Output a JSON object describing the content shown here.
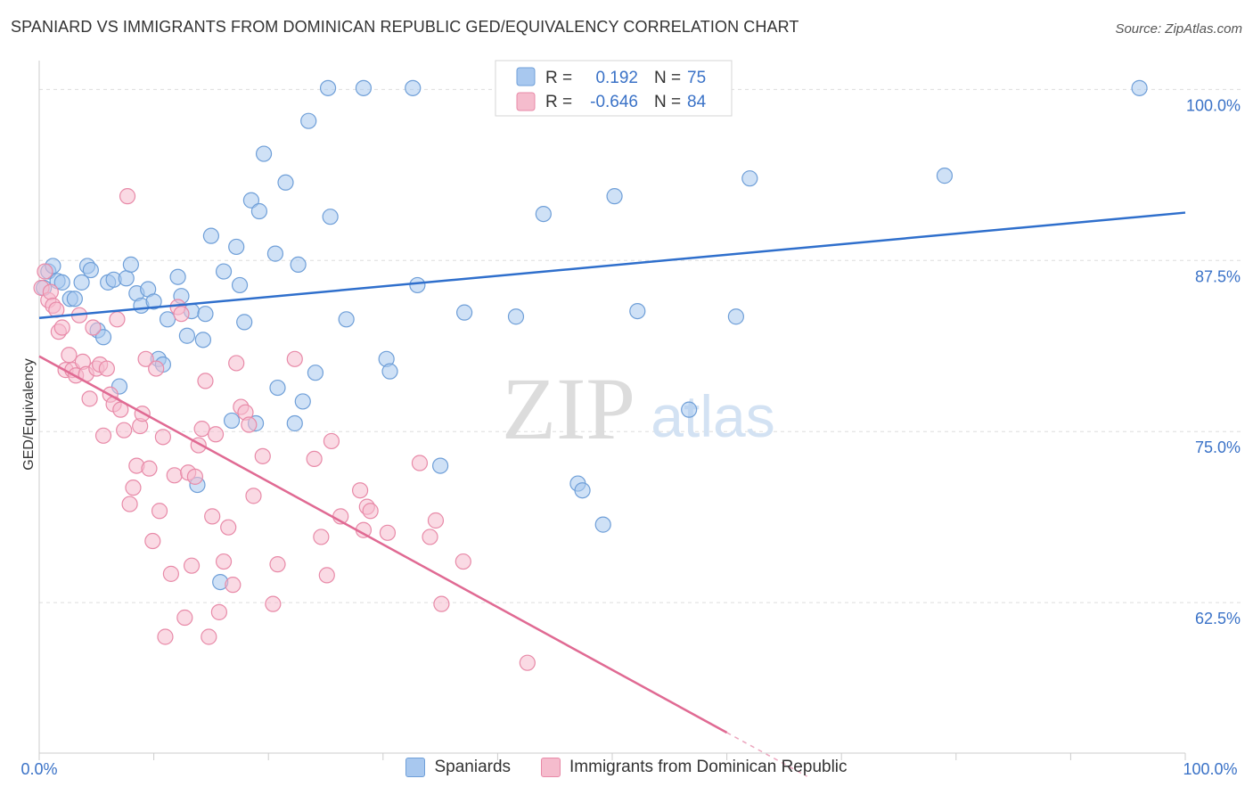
{
  "header": {
    "title": "SPANIARD VS IMMIGRANTS FROM DOMINICAN REPUBLIC GED/EQUIVALENCY CORRELATION CHART",
    "source": "Source: ZipAtlas.com"
  },
  "watermark": {
    "zip": "ZIP",
    "atlas": "atlas"
  },
  "colors": {
    "blue_fill": "#a8c8ef",
    "blue_stroke": "#6f9fd8",
    "blue_line": "#2f6fcc",
    "pink_fill": "#f5bccd",
    "pink_stroke": "#e88aa8",
    "pink_line": "#e06a93",
    "tick_label": "#3a72c7",
    "grid": "#dddddd"
  },
  "legend_top": [
    {
      "r_label": "R =",
      "r_value": "0.192",
      "n_label": "N =",
      "n_value": "75"
    },
    {
      "r_label": "R =",
      "r_value": "-0.646",
      "n_label": "N =",
      "n_value": "84"
    }
  ],
  "legend_bottom": [
    {
      "label": "Spaniards"
    },
    {
      "label": "Immigrants from Dominican Republic"
    }
  ],
  "chart_data": {
    "type": "scatter",
    "title": "SPANIARD VS IMMIGRANTS FROM DOMINICAN REPUBLIC GED/EQUIVALENCY CORRELATION CHART",
    "xlabel": "",
    "ylabel": "GED/Equivalency",
    "xlim": [
      0,
      100
    ],
    "ylim": [
      51.5,
      102.5
    ],
    "x_tick_labels": [
      "0.0%",
      "100.0%"
    ],
    "y_ticks": [
      62.5,
      75.0,
      87.5,
      100.0
    ],
    "y_tick_labels": [
      "62.5%",
      "75.0%",
      "87.5%",
      "100.0%"
    ],
    "grid": "horizontal dashed",
    "legend_placement": "top-center",
    "series": [
      {
        "name": "Spaniards",
        "r": 0.192,
        "n": 75,
        "trend": {
          "x0": 0,
          "y0": 83.3,
          "x1": 100,
          "y1": 91.0
        },
        "points": [
          [
            0.4,
            85.5
          ],
          [
            0.8,
            86.7
          ],
          [
            1.2,
            87.1
          ],
          [
            1.6,
            86.0
          ],
          [
            2.0,
            85.9
          ],
          [
            2.7,
            84.7
          ],
          [
            3.1,
            84.7
          ],
          [
            3.7,
            85.9
          ],
          [
            4.2,
            87.1
          ],
          [
            4.5,
            86.8
          ],
          [
            5.1,
            82.4
          ],
          [
            5.6,
            81.9
          ],
          [
            6.0,
            85.9
          ],
          [
            6.5,
            86.1
          ],
          [
            7.0,
            78.3
          ],
          [
            7.6,
            86.2
          ],
          [
            8.0,
            87.2
          ],
          [
            8.5,
            85.1
          ],
          [
            8.9,
            84.2
          ],
          [
            9.5,
            85.4
          ],
          [
            10.0,
            84.5
          ],
          [
            10.4,
            80.3
          ],
          [
            10.8,
            79.9
          ],
          [
            11.2,
            83.2
          ],
          [
            12.1,
            86.3
          ],
          [
            12.4,
            84.9
          ],
          [
            12.9,
            82.0
          ],
          [
            13.3,
            83.8
          ],
          [
            13.8,
            71.1
          ],
          [
            14.3,
            81.7
          ],
          [
            14.5,
            83.6
          ],
          [
            15.0,
            89.3
          ],
          [
            15.8,
            64.0
          ],
          [
            16.1,
            86.7
          ],
          [
            16.8,
            75.8
          ],
          [
            17.2,
            88.5
          ],
          [
            17.5,
            85.7
          ],
          [
            17.9,
            83.0
          ],
          [
            18.5,
            91.9
          ],
          [
            18.9,
            75.6
          ],
          [
            19.2,
            91.1
          ],
          [
            19.6,
            95.3
          ],
          [
            20.6,
            88.0
          ],
          [
            20.8,
            78.2
          ],
          [
            21.5,
            93.2
          ],
          [
            22.3,
            75.6
          ],
          [
            22.6,
            87.2
          ],
          [
            23.0,
            77.2
          ],
          [
            23.5,
            97.7
          ],
          [
            24.1,
            79.3
          ],
          [
            25.2,
            100.1
          ],
          [
            25.4,
            90.7
          ],
          [
            26.8,
            83.2
          ],
          [
            28.3,
            100.1
          ],
          [
            30.3,
            80.3
          ],
          [
            30.6,
            79.4
          ],
          [
            32.6,
            100.1
          ],
          [
            33.0,
            85.7
          ],
          [
            35.0,
            72.5
          ],
          [
            37.1,
            83.7
          ],
          [
            41.2,
            100.1
          ],
          [
            41.6,
            83.4
          ],
          [
            44.0,
            90.9
          ],
          [
            47.0,
            71.2
          ],
          [
            47.4,
            70.7
          ],
          [
            49.2,
            68.2
          ],
          [
            50.2,
            92.2
          ],
          [
            52.2,
            83.8
          ],
          [
            56.7,
            76.6
          ],
          [
            60.8,
            83.4
          ],
          [
            62.0,
            93.5
          ],
          [
            79.0,
            93.7
          ],
          [
            96.0,
            100.1
          ]
        ]
      },
      {
        "name": "Immigrants from Dominican Republic",
        "r": -0.646,
        "n": 84,
        "trend": {
          "x0": 0,
          "y0": 80.5,
          "x1": 60,
          "y1": 53.0,
          "dash_to_x": 67,
          "dash_to_y": 49.8
        },
        "points": [
          [
            0.2,
            85.5
          ],
          [
            0.5,
            86.7
          ],
          [
            0.8,
            84.6
          ],
          [
            1.0,
            85.2
          ],
          [
            1.2,
            84.2
          ],
          [
            1.5,
            83.9
          ],
          [
            1.7,
            82.3
          ],
          [
            2.0,
            82.6
          ],
          [
            2.3,
            79.5
          ],
          [
            2.6,
            80.6
          ],
          [
            2.9,
            79.5
          ],
          [
            3.2,
            79.1
          ],
          [
            3.5,
            83.5
          ],
          [
            3.8,
            80.1
          ],
          [
            4.1,
            79.2
          ],
          [
            4.4,
            77.4
          ],
          [
            4.7,
            82.6
          ],
          [
            5.0,
            79.6
          ],
          [
            5.3,
            79.9
          ],
          [
            5.6,
            74.7
          ],
          [
            5.9,
            79.6
          ],
          [
            6.2,
            77.7
          ],
          [
            6.5,
            77.0
          ],
          [
            6.8,
            83.2
          ],
          [
            7.1,
            76.6
          ],
          [
            7.4,
            75.1
          ],
          [
            7.7,
            92.2
          ],
          [
            7.9,
            69.7
          ],
          [
            8.2,
            70.9
          ],
          [
            8.5,
            72.5
          ],
          [
            8.8,
            75.4
          ],
          [
            9.0,
            76.3
          ],
          [
            9.3,
            80.3
          ],
          [
            9.6,
            72.3
          ],
          [
            9.9,
            67.0
          ],
          [
            10.2,
            79.6
          ],
          [
            10.5,
            69.2
          ],
          [
            10.8,
            74.6
          ],
          [
            11.0,
            60.0
          ],
          [
            11.5,
            64.6
          ],
          [
            11.8,
            71.8
          ],
          [
            12.1,
            84.1
          ],
          [
            12.4,
            83.6
          ],
          [
            12.7,
            61.4
          ],
          [
            13.0,
            72.0
          ],
          [
            13.3,
            65.2
          ],
          [
            13.6,
            71.7
          ],
          [
            13.9,
            74.0
          ],
          [
            14.2,
            75.2
          ],
          [
            14.5,
            78.7
          ],
          [
            14.8,
            60.0
          ],
          [
            15.1,
            68.8
          ],
          [
            15.4,
            74.8
          ],
          [
            15.7,
            61.8
          ],
          [
            16.1,
            65.5
          ],
          [
            16.5,
            68.0
          ],
          [
            16.9,
            63.8
          ],
          [
            17.2,
            80.0
          ],
          [
            17.6,
            76.8
          ],
          [
            18.0,
            76.4
          ],
          [
            18.3,
            75.5
          ],
          [
            18.7,
            70.3
          ],
          [
            19.5,
            73.2
          ],
          [
            20.4,
            62.4
          ],
          [
            20.8,
            65.3
          ],
          [
            22.3,
            80.3
          ],
          [
            24.0,
            73.0
          ],
          [
            24.6,
            67.3
          ],
          [
            25.1,
            64.5
          ],
          [
            25.5,
            74.3
          ],
          [
            26.3,
            68.8
          ],
          [
            28.0,
            70.7
          ],
          [
            28.3,
            67.8
          ],
          [
            28.6,
            69.5
          ],
          [
            28.9,
            69.2
          ],
          [
            30.4,
            67.6
          ],
          [
            33.2,
            72.7
          ],
          [
            34.1,
            67.3
          ],
          [
            34.6,
            68.5
          ],
          [
            35.1,
            62.4
          ],
          [
            37.0,
            65.5
          ],
          [
            42.6,
            58.1
          ]
        ]
      }
    ]
  }
}
